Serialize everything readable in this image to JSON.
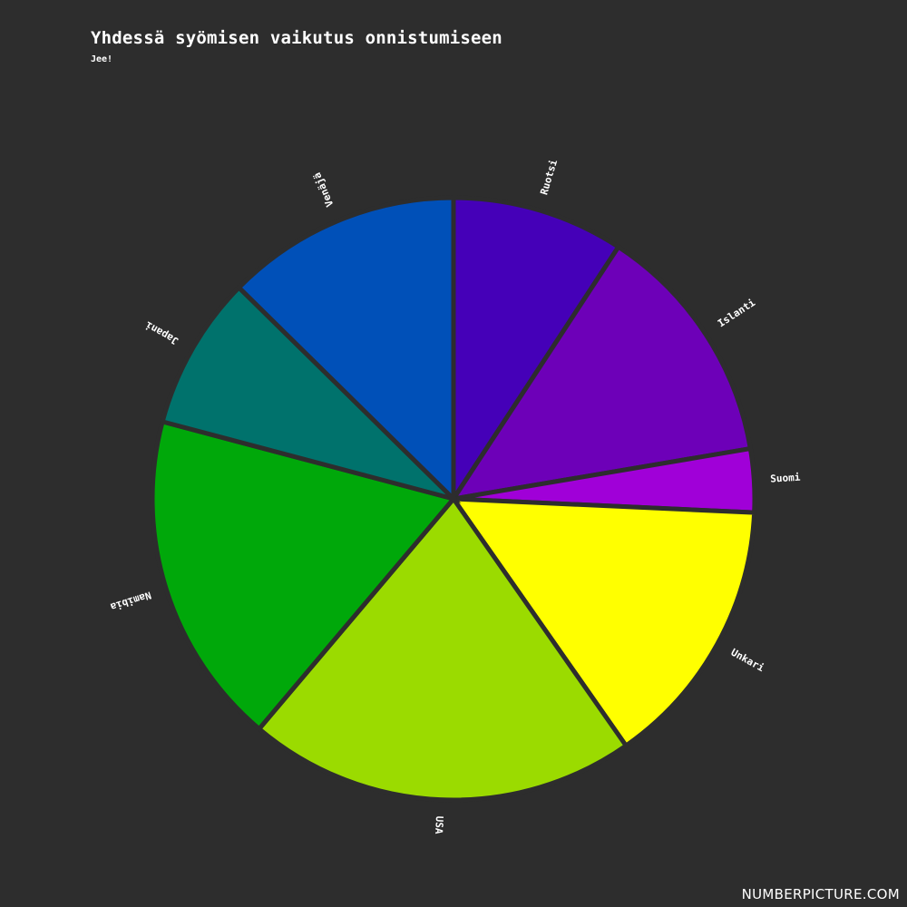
{
  "chart_data": {
    "type": "pie",
    "title": "Yhdessä syömisen vaikutus onnistumiseen",
    "subtitle": "Jee!",
    "slices": [
      {
        "label": "Ruotsi",
        "value": 9.5,
        "color": "#4500b8"
      },
      {
        "label": "Islanti",
        "value": 13.5,
        "color": "#6d00b8"
      },
      {
        "label": "Suomi",
        "value": 3.5,
        "color": "#a000d8"
      },
      {
        "label": "Unkari",
        "value": 15,
        "color": "#ffff00"
      },
      {
        "label": "USA",
        "value": 21.5,
        "color": "#9bdb00"
      },
      {
        "label": "Namibia",
        "value": 18.5,
        "color": "#00a80a"
      },
      {
        "label": "Japani",
        "value": 8.5,
        "color": "#00726c"
      },
      {
        "label": "Venäjä",
        "value": 13,
        "color": "#0050b8"
      }
    ]
  },
  "watermark": "NUMBERPICTURE.COM",
  "colors": {
    "background": "#2d2d2d",
    "separator": "#2d2d2d",
    "text": "#ffffff"
  }
}
